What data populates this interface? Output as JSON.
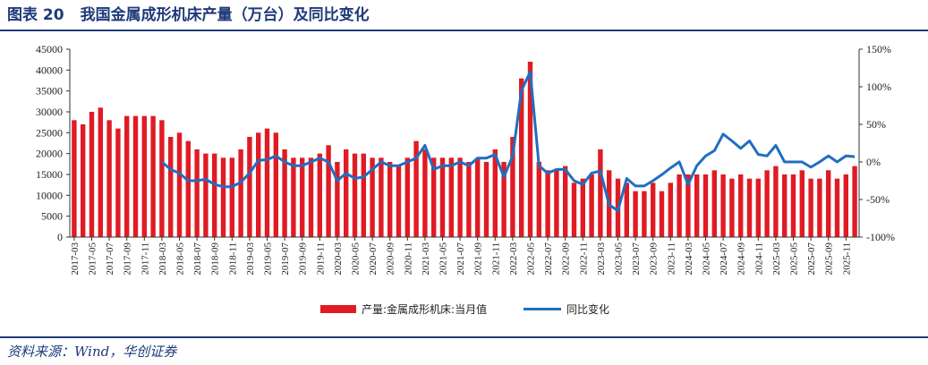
{
  "header": {
    "figure_label": "图表 20",
    "title": "我国金属成形机床产量（万台）及同比变化"
  },
  "source": "资料来源：Wind，华创证券",
  "colors": {
    "bar": "#e01b24",
    "line": "#1f6fc0",
    "title": "#1f3a7a"
  },
  "chart_data": {
    "type": "bar",
    "left_axis": {
      "ylim": [
        0,
        45000
      ],
      "ticks": [
        "0",
        "5000",
        "10000",
        "15000",
        "20000",
        "25000",
        "30000",
        "35000",
        "40000",
        "45000"
      ]
    },
    "right_axis": {
      "ylim": [
        -100,
        150
      ],
      "ticks": [
        "-100%",
        "-50%",
        "0%",
        "50%",
        "100%",
        "150%"
      ]
    },
    "x_tick_labels": [
      "2017-03",
      "2017-05",
      "2017-07",
      "2017-09",
      "2017-11",
      "2018-03",
      "2018-05",
      "2018-07",
      "2018-09",
      "2018-11",
      "2019-03",
      "2019-05",
      "2019-07",
      "2019-09",
      "2019-11",
      "2020-03",
      "2020-05",
      "2020-07",
      "2020-09",
      "2020-11",
      "2021-03",
      "2021-05",
      "2021-07",
      "2021-09",
      "2021-11",
      "2022-03",
      "2022-05",
      "2022-07",
      "2022-09",
      "2022-11",
      "2023-03",
      "2023-05",
      "2023-07",
      "2023-09",
      "2023-11",
      "2024-03",
      "2024-05",
      "2024-07",
      "2024-09",
      "2024-11",
      "2025-03",
      "2025-05",
      "2025-07",
      "2025-09",
      "2025-11"
    ],
    "categories": [
      "2017-03",
      "2017-04",
      "2017-05",
      "2017-06",
      "2017-07",
      "2017-08",
      "2017-09",
      "2017-10",
      "2017-11",
      "2017-12",
      "2018-03",
      "2018-04",
      "2018-05",
      "2018-06",
      "2018-07",
      "2018-08",
      "2018-09",
      "2018-10",
      "2018-11",
      "2018-12",
      "2019-03",
      "2019-04",
      "2019-05",
      "2019-06",
      "2019-07",
      "2019-08",
      "2019-09",
      "2019-10",
      "2019-11",
      "2019-12",
      "2020-03",
      "2020-04",
      "2020-05",
      "2020-06",
      "2020-07",
      "2020-08",
      "2020-09",
      "2020-10",
      "2020-11",
      "2020-12",
      "2021-03",
      "2021-04",
      "2021-05",
      "2021-06",
      "2021-07",
      "2021-08",
      "2021-09",
      "2021-10",
      "2021-11",
      "2021-12",
      "2022-03",
      "2022-04",
      "2022-05",
      "2022-06",
      "2022-07",
      "2022-08",
      "2022-09",
      "2022-10",
      "2022-11",
      "2022-12",
      "2023-03",
      "2023-04",
      "2023-05",
      "2023-06",
      "2023-07",
      "2023-08",
      "2023-09",
      "2023-10",
      "2023-11",
      "2023-12",
      "2024-03",
      "2024-04",
      "2024-05",
      "2024-06",
      "2024-07",
      "2024-08",
      "2024-09",
      "2024-10",
      "2024-11",
      "2024-12",
      "2025-03",
      "2025-04",
      "2025-05",
      "2025-06",
      "2025-07",
      "2025-08",
      "2025-09",
      "2025-10",
      "2025-11",
      "2025-12"
    ],
    "series": [
      {
        "name": "产量:金属成形机床:当月值",
        "type": "bar",
        "axis": "left",
        "values": [
          28000,
          27000,
          30000,
          31000,
          28000,
          26000,
          29000,
          29000,
          29000,
          29000,
          28000,
          24000,
          25000,
          23000,
          21000,
          20000,
          20000,
          19000,
          19000,
          21000,
          24000,
          25000,
          26000,
          25000,
          21000,
          19000,
          19000,
          19000,
          20000,
          22000,
          18000,
          21000,
          20000,
          20000,
          19000,
          19000,
          18000,
          17000,
          19000,
          23000,
          21000,
          19000,
          19000,
          19000,
          19000,
          18000,
          19000,
          18000,
          21000,
          18000,
          24000,
          38000,
          42000,
          18000,
          16000,
          16000,
          17000,
          13000,
          14000,
          15000,
          21000,
          16000,
          14000,
          13000,
          11000,
          11000,
          13000,
          11000,
          13000,
          15000,
          15000,
          15000,
          15000,
          16000,
          15000,
          14000,
          15000,
          14000,
          14000,
          16000,
          17000,
          15000,
          15000,
          16000,
          14000,
          14000,
          16000,
          14000,
          15000,
          17000
        ]
      },
      {
        "name": "同比变化",
        "type": "line",
        "axis": "right",
        "values": [
          null,
          null,
          null,
          null,
          null,
          null,
          null,
          null,
          null,
          null,
          0,
          -10,
          -15,
          -25,
          -25,
          -23,
          -30,
          -33,
          -33,
          -27,
          -15,
          2,
          3,
          8,
          0,
          -5,
          -5,
          0,
          5,
          0,
          -25,
          -15,
          -22,
          -20,
          -10,
          0,
          -5,
          -5,
          0,
          5,
          22,
          -10,
          -5,
          -5,
          0,
          -5,
          5,
          5,
          10,
          -20,
          8,
          95,
          120,
          -5,
          -15,
          -10,
          -10,
          -25,
          -30,
          -15,
          -12,
          -57,
          -65,
          -22,
          -32,
          -32,
          -25,
          -17,
          -8,
          0,
          -30,
          -5,
          8,
          15,
          37,
          28,
          18,
          28,
          10,
          8,
          22,
          0,
          0,
          0,
          -7,
          0,
          8,
          0,
          8,
          7
        ]
      }
    ],
    "legend_position": "bottom-center",
    "grid": false
  }
}
